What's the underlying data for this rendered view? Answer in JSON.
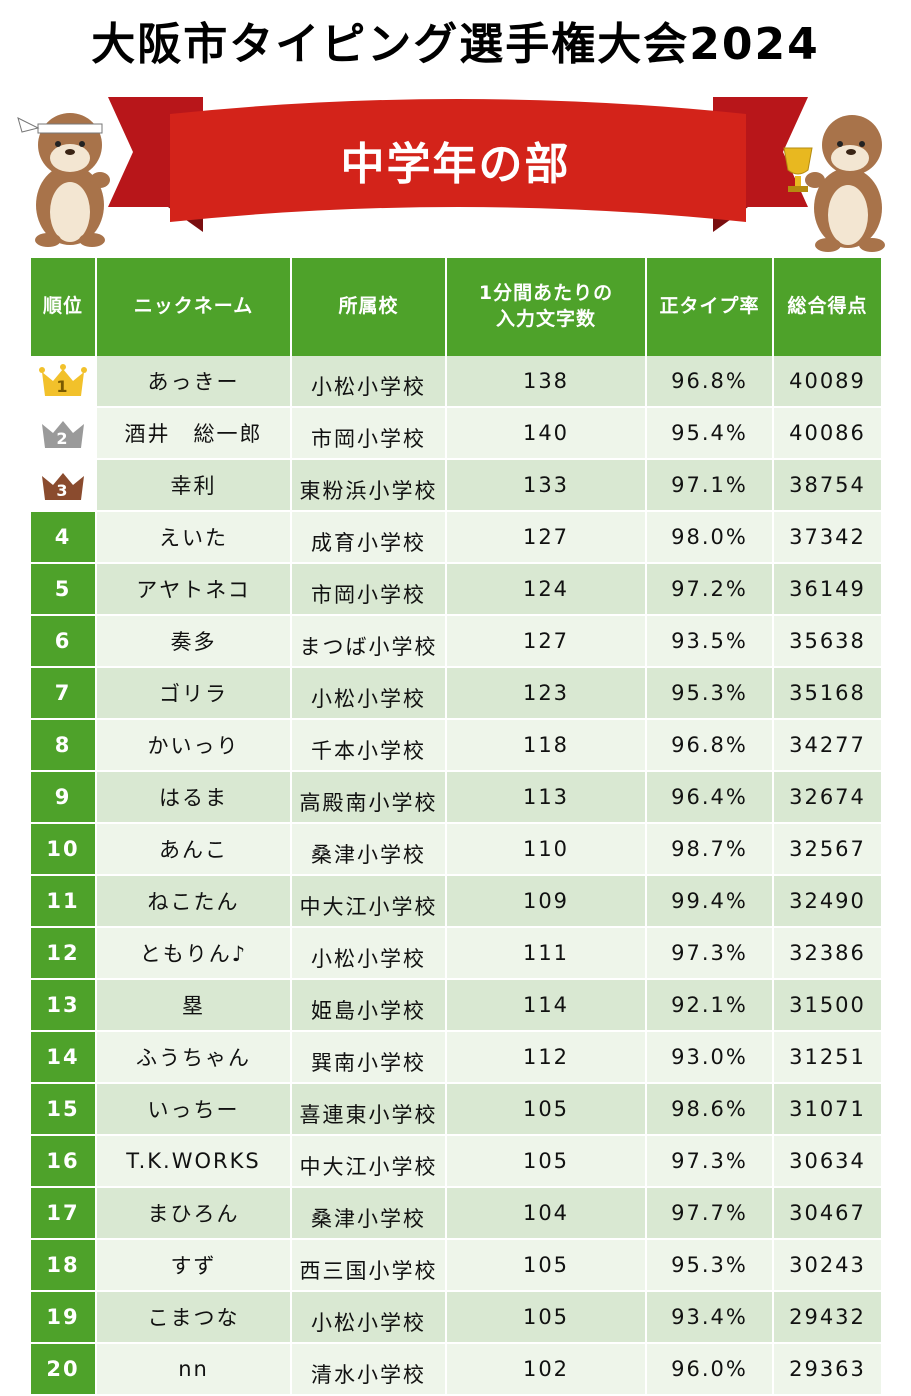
{
  "title": "大阪市タイピング選手権大会2024",
  "division": "中学年の部",
  "colors": {
    "header_green": "#4ea22a",
    "row_light": "#eef5ea",
    "row_mid": "#d9e8d2",
    "banner_red": "#d3231a",
    "gold": "#f2c12b",
    "silver": "#9a9a9a",
    "bronze": "#8a4b2e"
  },
  "table": {
    "headers": {
      "rank": "順位",
      "nickname": "ニックネーム",
      "school": "所属校",
      "chars_line1": "1分間あたりの",
      "chars_line2": "入力文字数",
      "accuracy": "正タイプ率",
      "score": "総合得点"
    },
    "rows": [
      {
        "rank": "1",
        "nickname": "あっきー",
        "school": "小松小学校",
        "chars": "138",
        "accuracy": "96.8%",
        "score": "40089"
      },
      {
        "rank": "2",
        "nickname": "酒井　総一郎",
        "school": "市岡小学校",
        "chars": "140",
        "accuracy": "95.4%",
        "score": "40086"
      },
      {
        "rank": "3",
        "nickname": "幸利",
        "school": "東粉浜小学校",
        "chars": "133",
        "accuracy": "97.1%",
        "score": "38754"
      },
      {
        "rank": "4",
        "nickname": "えいた",
        "school": "成育小学校",
        "chars": "127",
        "accuracy": "98.0%",
        "score": "37342"
      },
      {
        "rank": "5",
        "nickname": "アヤトネコ",
        "school": "市岡小学校",
        "chars": "124",
        "accuracy": "97.2%",
        "score": "36149"
      },
      {
        "rank": "6",
        "nickname": "奏多",
        "school": "まつば小学校",
        "chars": "127",
        "accuracy": "93.5%",
        "score": "35638"
      },
      {
        "rank": "7",
        "nickname": "ゴリラ",
        "school": "小松小学校",
        "chars": "123",
        "accuracy": "95.3%",
        "score": "35168"
      },
      {
        "rank": "8",
        "nickname": "かいっり",
        "school": "千本小学校",
        "chars": "118",
        "accuracy": "96.8%",
        "score": "34277"
      },
      {
        "rank": "9",
        "nickname": "はるま",
        "school": "高殿南小学校",
        "chars": "113",
        "accuracy": "96.4%",
        "score": "32674"
      },
      {
        "rank": "10",
        "nickname": "あんこ",
        "school": "桑津小学校",
        "chars": "110",
        "accuracy": "98.7%",
        "score": "32567"
      },
      {
        "rank": "11",
        "nickname": "ねこたん",
        "school": "中大江小学校",
        "chars": "109",
        "accuracy": "99.4%",
        "score": "32490"
      },
      {
        "rank": "12",
        "nickname": "ともりん♪",
        "school": "小松小学校",
        "chars": "111",
        "accuracy": "97.3%",
        "score": "32386"
      },
      {
        "rank": "13",
        "nickname": "塁",
        "school": "姫島小学校",
        "chars": "114",
        "accuracy": "92.1%",
        "score": "31500"
      },
      {
        "rank": "14",
        "nickname": "ふうちゃん",
        "school": "巽南小学校",
        "chars": "112",
        "accuracy": "93.0%",
        "score": "31251"
      },
      {
        "rank": "15",
        "nickname": "いっちー",
        "school": "喜連東小学校",
        "chars": "105",
        "accuracy": "98.6%",
        "score": "31071"
      },
      {
        "rank": "16",
        "nickname": "T.K.WORKS",
        "school": "中大江小学校",
        "chars": "105",
        "accuracy": "97.3%",
        "score": "30634"
      },
      {
        "rank": "17",
        "nickname": "まひろん",
        "school": "桑津小学校",
        "chars": "104",
        "accuracy": "97.7%",
        "score": "30467"
      },
      {
        "rank": "18",
        "nickname": "すず",
        "school": "西三国小学校",
        "chars": "105",
        "accuracy": "95.3%",
        "score": "30243"
      },
      {
        "rank": "19",
        "nickname": "こまつな",
        "school": "小松小学校",
        "chars": "105",
        "accuracy": "93.4%",
        "score": "29432"
      },
      {
        "rank": "20",
        "nickname": "nn",
        "school": "清水小学校",
        "chars": "102",
        "accuracy": "96.0%",
        "score": "29363"
      }
    ]
  }
}
